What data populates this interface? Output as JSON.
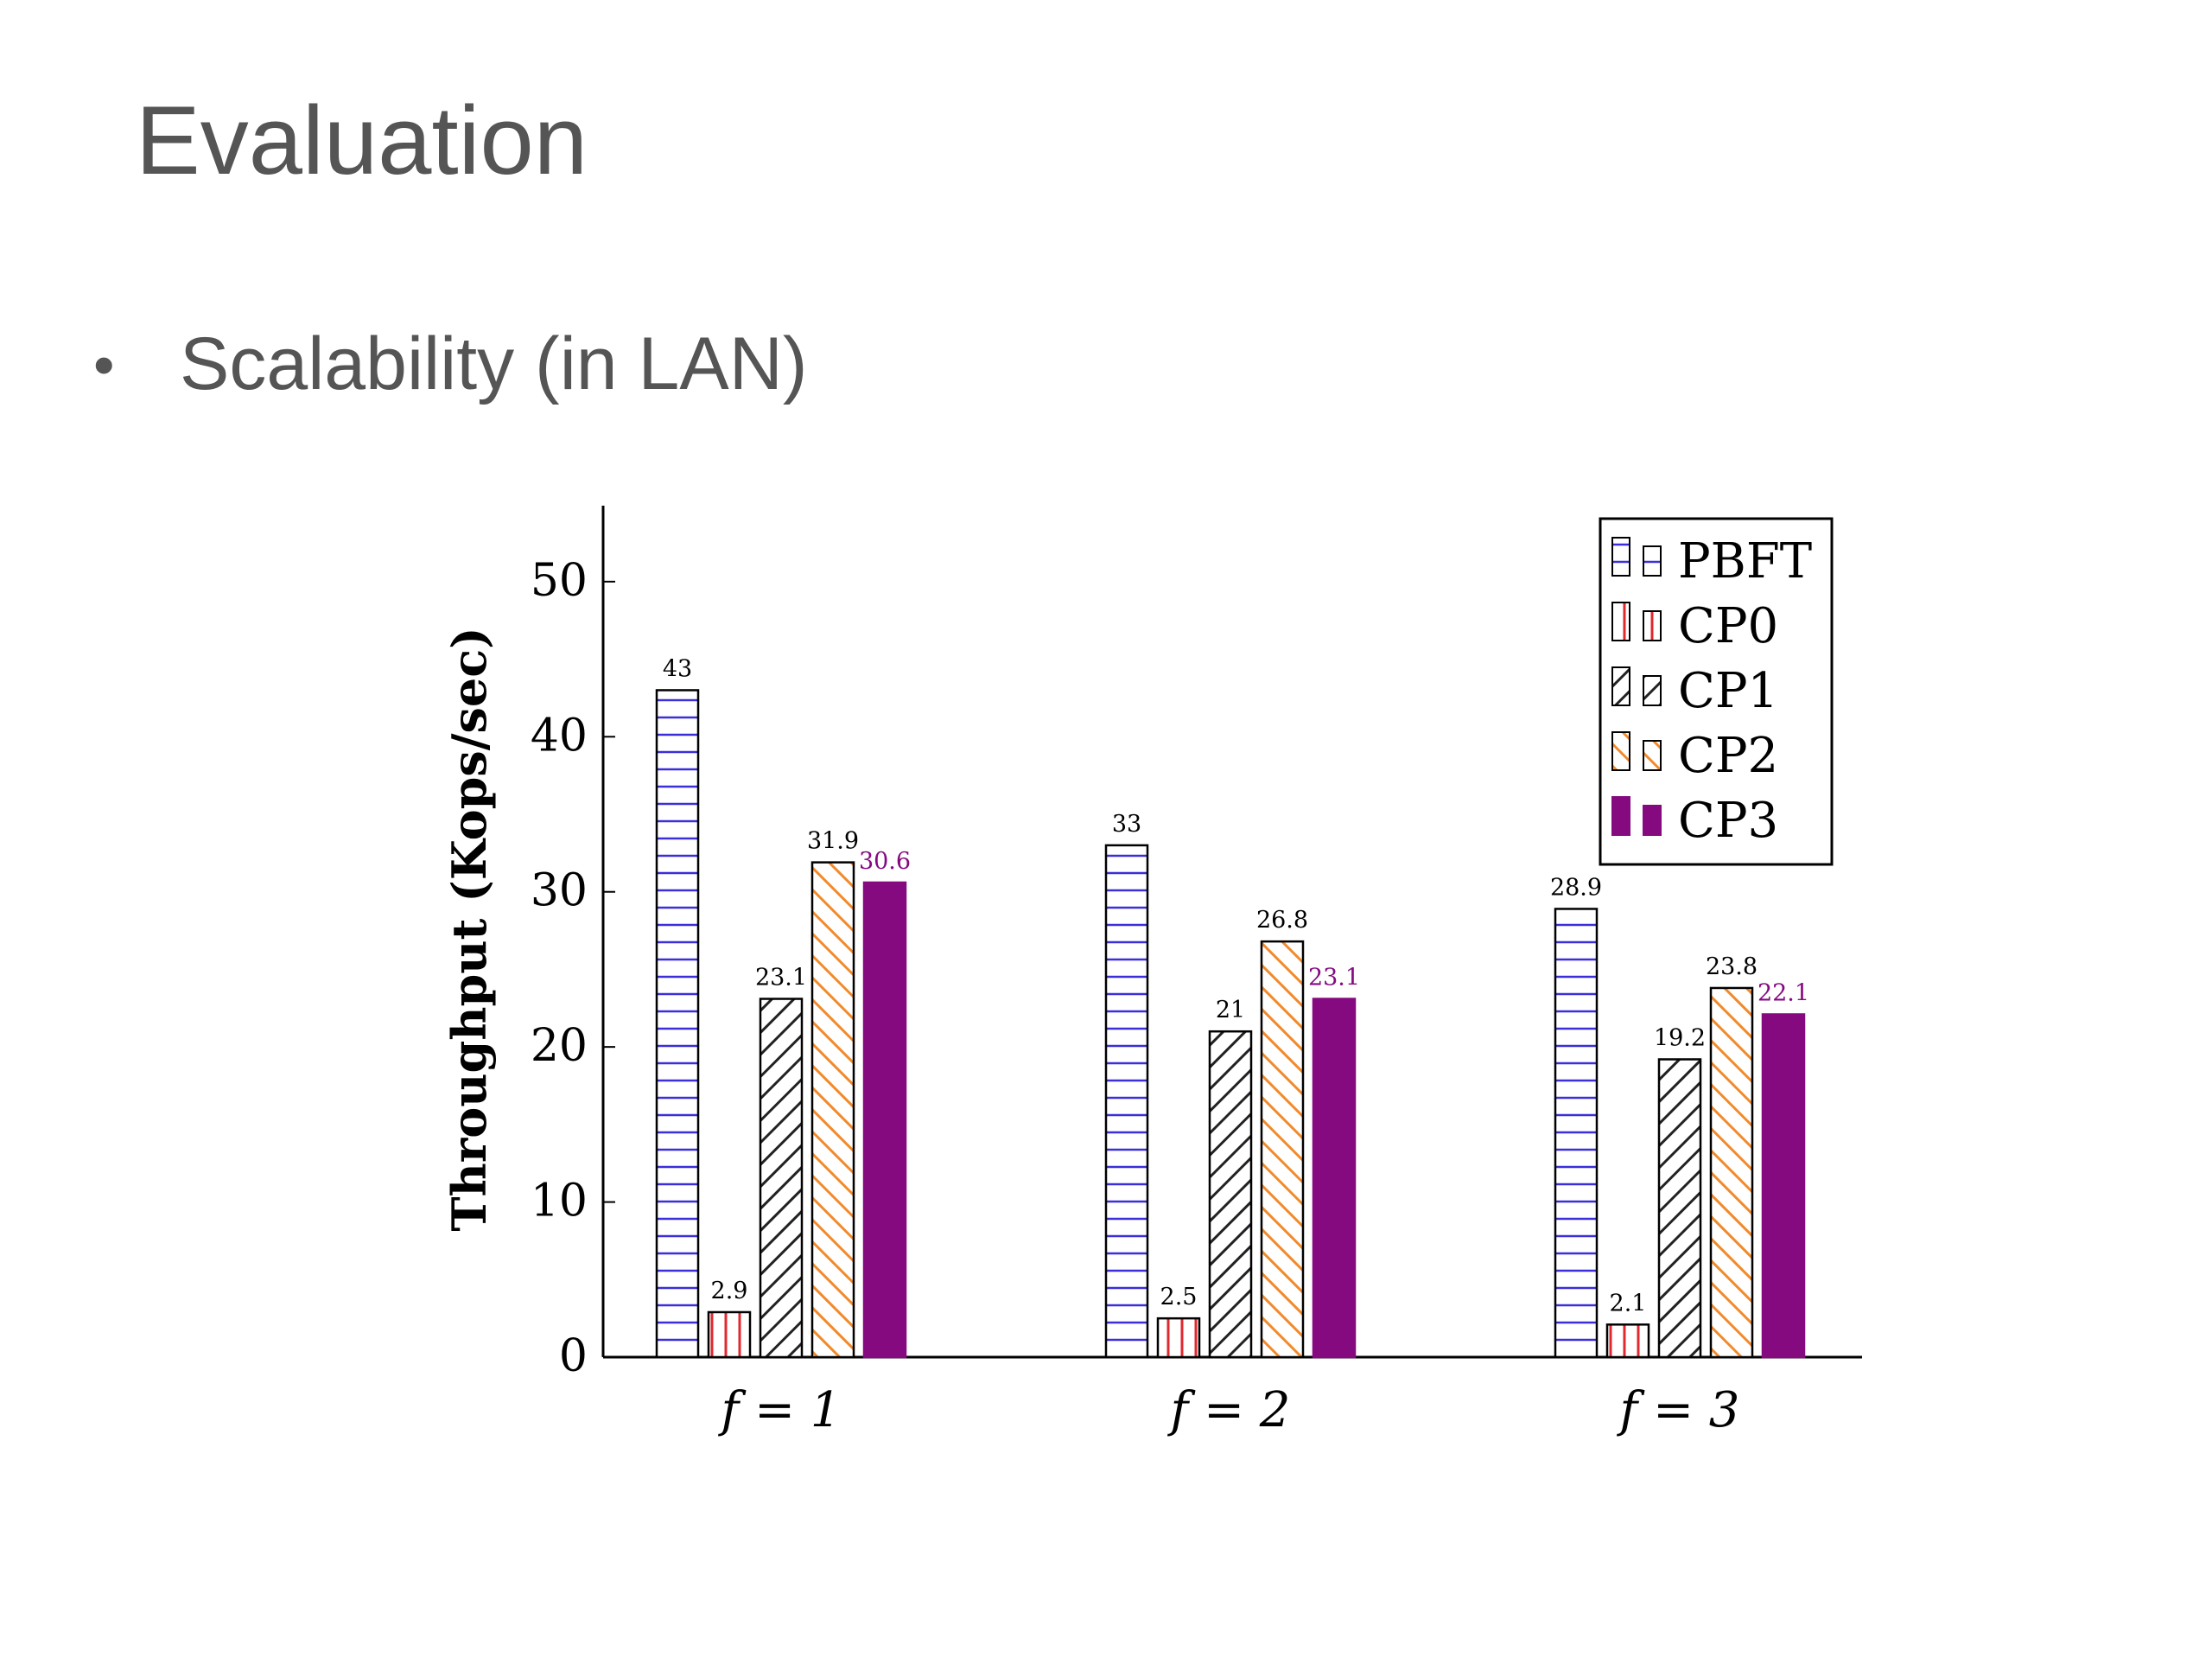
{
  "slide": {
    "title": "Evaluation",
    "bullet": "Scalability (in LAN)"
  },
  "chart_data": {
    "type": "bar",
    "categories": [
      "f = 1",
      "f = 2",
      "f = 3"
    ],
    "ylabel": "Throughput (Kops/sec)",
    "xlabel": "",
    "ylim": [
      0,
      55
    ],
    "yticks": [
      0,
      10,
      20,
      30,
      40,
      50
    ],
    "grid": false,
    "legend_position": "top-right",
    "series": [
      {
        "name": "PBFT",
        "values": [
          43,
          33,
          28.9
        ],
        "labels": [
          "43",
          "33",
          "28.9"
        ],
        "color": "#3a2fd8",
        "pattern": "horizontal-lines"
      },
      {
        "name": "CP0",
        "values": [
          2.9,
          2.5,
          2.1
        ],
        "labels": [
          "2.9",
          "2.5",
          "2.1"
        ],
        "color": "#e0282f",
        "pattern": "vertical-lines"
      },
      {
        "name": "CP1",
        "values": [
          23.1,
          21,
          19.2
        ],
        "labels": [
          "23.1",
          "21",
          "19.2"
        ],
        "color": "#222222",
        "pattern": "diagonal-lines"
      },
      {
        "name": "CP2",
        "values": [
          31.9,
          26.8,
          23.8
        ],
        "labels": [
          "31.9",
          "26.8",
          "23.8"
        ],
        "color": "#f28a2a",
        "pattern": "diagonal-lines-reverse"
      },
      {
        "name": "CP3",
        "values": [
          30.6,
          23.1,
          22.1
        ],
        "labels": [
          "30.6",
          "23.1",
          "22.1"
        ],
        "color": "#850a80",
        "pattern": "solid"
      }
    ]
  }
}
